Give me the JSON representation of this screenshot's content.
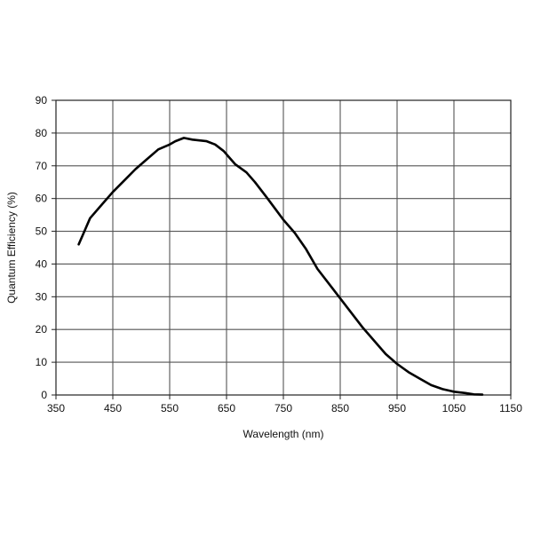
{
  "chart_data": {
    "type": "line",
    "title": "",
    "xlabel": "Wavelength (nm)",
    "ylabel": "Quantum Efficiency (%)",
    "xlim": [
      350,
      1150
    ],
    "ylim": [
      0,
      90
    ],
    "x_ticks": [
      350,
      450,
      550,
      650,
      750,
      850,
      950,
      1050,
      1150
    ],
    "x_tick_labels": [
      "350",
      "450",
      "550",
      "650",
      "750",
      "850",
      "950",
      "1050",
      "1150"
    ],
    "y_ticks": [
      0,
      10,
      20,
      30,
      40,
      50,
      60,
      70,
      80,
      90
    ],
    "y_tick_labels": [
      "0",
      "10",
      "20",
      "30",
      "40",
      "50",
      "60",
      "70",
      "80",
      "90"
    ],
    "grid": true,
    "legend": "none",
    "series": [
      {
        "color": "#000000",
        "points": [
          {
            "x": 390,
            "y": 46
          },
          {
            "x": 400,
            "y": 50
          },
          {
            "x": 410,
            "y": 54
          },
          {
            "x": 430,
            "y": 58
          },
          {
            "x": 450,
            "y": 62
          },
          {
            "x": 470,
            "y": 65.5
          },
          {
            "x": 490,
            "y": 69
          },
          {
            "x": 510,
            "y": 72
          },
          {
            "x": 530,
            "y": 75
          },
          {
            "x": 550,
            "y": 76.5
          },
          {
            "x": 560,
            "y": 77.5
          },
          {
            "x": 575,
            "y": 78.5
          },
          {
            "x": 590,
            "y": 78
          },
          {
            "x": 615,
            "y": 77.5
          },
          {
            "x": 630,
            "y": 76.5
          },
          {
            "x": 645,
            "y": 74.5
          },
          {
            "x": 665,
            "y": 70.5
          },
          {
            "x": 685,
            "y": 68
          },
          {
            "x": 700,
            "y": 65
          },
          {
            "x": 720,
            "y": 60.5
          },
          {
            "x": 735,
            "y": 57
          },
          {
            "x": 750,
            "y": 53.5
          },
          {
            "x": 770,
            "y": 49.5
          },
          {
            "x": 790,
            "y": 44.5
          },
          {
            "x": 810,
            "y": 38.5
          },
          {
            "x": 830,
            "y": 34
          },
          {
            "x": 850,
            "y": 29.5
          },
          {
            "x": 870,
            "y": 25
          },
          {
            "x": 890,
            "y": 20.5
          },
          {
            "x": 910,
            "y": 16.5
          },
          {
            "x": 930,
            "y": 12.5
          },
          {
            "x": 950,
            "y": 9.5
          },
          {
            "x": 970,
            "y": 7
          },
          {
            "x": 990,
            "y": 5
          },
          {
            "x": 1010,
            "y": 3
          },
          {
            "x": 1030,
            "y": 1.8
          },
          {
            "x": 1050,
            "y": 1.0
          },
          {
            "x": 1070,
            "y": 0.6
          },
          {
            "x": 1085,
            "y": 0.2
          },
          {
            "x": 1100,
            "y": 0.1
          }
        ]
      }
    ]
  }
}
